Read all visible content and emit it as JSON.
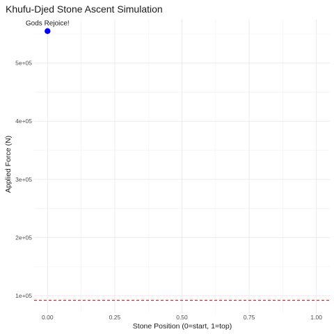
{
  "chart_data": {
    "type": "scatter",
    "title": "Khufu-Djed Stone Ascent Simulation",
    "xlabel": "Stone Position (0=start, 1=top)",
    "ylabel": "Applied Force (N)",
    "xlim": [
      -0.05,
      1.05
    ],
    "ylim": [
      70000,
      575000
    ],
    "x_ticks": [
      0.0,
      0.25,
      0.5,
      0.75,
      1.0
    ],
    "x_tick_labels": [
      "0.00",
      "0.25",
      "0.50",
      "0.75",
      "1.00"
    ],
    "y_ticks": [
      100000,
      200000,
      300000,
      400000,
      500000
    ],
    "y_tick_labels": [
      "1e+05",
      "2e+05",
      "3e+05",
      "4e+05",
      "5e+05"
    ],
    "grid": true,
    "points": [
      {
        "x": 0.0,
        "y": 555000,
        "color": "#0000ff"
      }
    ],
    "hline": {
      "y": 92000,
      "color": "#cc0000",
      "style": "dashed"
    },
    "annotation": {
      "text": "Gods Rejoice!",
      "x": 0.0,
      "y": 555000
    }
  }
}
